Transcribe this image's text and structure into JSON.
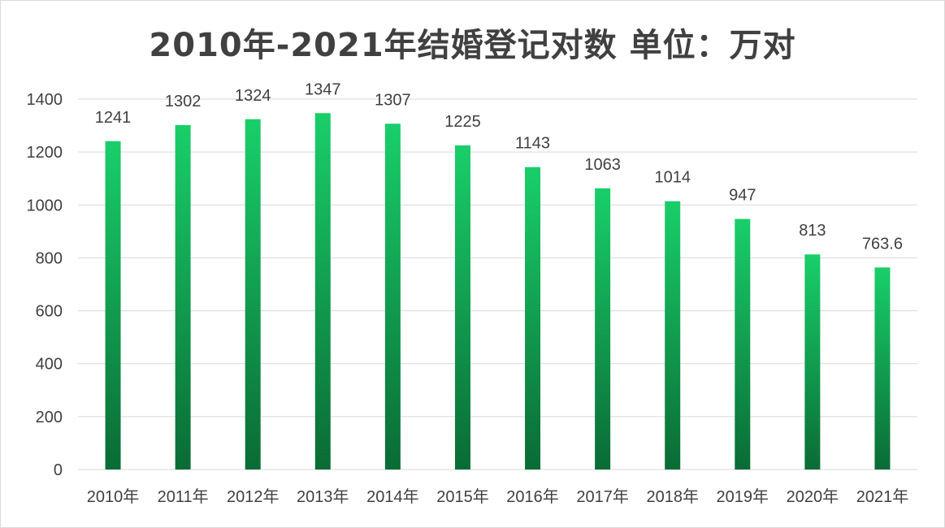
{
  "chart_data": {
    "type": "bar",
    "title": "2010年-2021年结婚登记对数 单位：万对",
    "xlabel": "",
    "ylabel": "",
    "categories": [
      "2010年",
      "2011年",
      "2012年",
      "2013年",
      "2014年",
      "2015年",
      "2016年",
      "2017年",
      "2018年",
      "2019年",
      "2020年",
      "2021年"
    ],
    "values": [
      1241,
      1302,
      1324,
      1347,
      1307,
      1225,
      1143,
      1063,
      1014,
      947,
      813,
      763.6
    ],
    "data_labels": [
      "1241",
      "1302",
      "1324",
      "1347",
      "1307",
      "1225",
      "1143",
      "1063",
      "1014",
      "947",
      "813",
      "763.6"
    ],
    "ylim": [
      0,
      1400
    ],
    "yticks": [
      0,
      200,
      400,
      600,
      800,
      1000,
      1200,
      1400
    ],
    "grid": true,
    "legend": "none",
    "colors": {
      "bar_top": "#19cf6a",
      "bar_bottom": "#0a6b35",
      "grid": "#d9d9d9",
      "text": "#404040"
    }
  }
}
